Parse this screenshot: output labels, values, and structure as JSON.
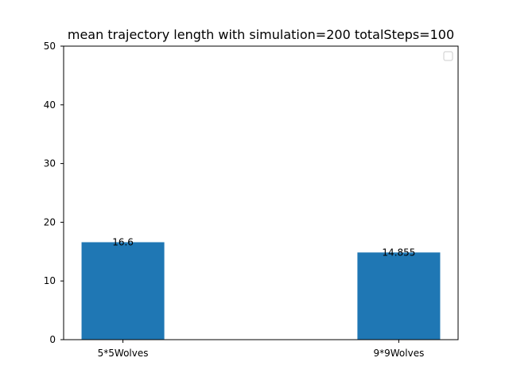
{
  "chart_data": {
    "type": "bar",
    "title": "mean trajectory length with simulation=200 totalSteps=100",
    "xlabel": "",
    "ylabel": "",
    "categories": [
      "5*5Wolves",
      "9*9Wolves"
    ],
    "values": [
      16.6,
      14.855
    ],
    "value_labels": [
      "16.6",
      "14.855"
    ],
    "ylim": [
      0,
      50
    ],
    "yticks": [
      0,
      10,
      20,
      30,
      40,
      50
    ],
    "grid": false,
    "legend": {
      "placement": "top-right",
      "entries": []
    },
    "bar_color": "#1f77b4"
  }
}
